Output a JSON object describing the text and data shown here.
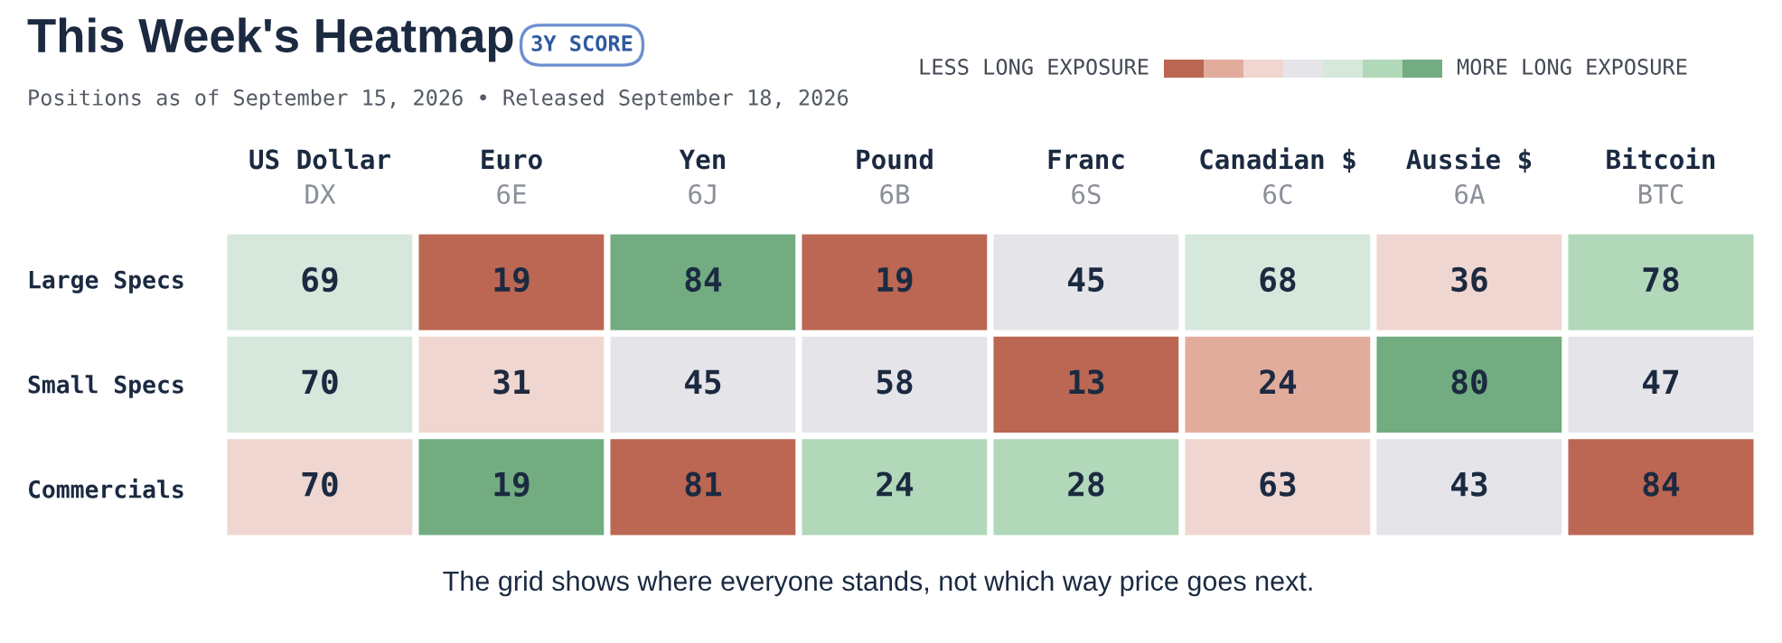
{
  "chart_data": {
    "type": "heatmap",
    "title": "This Week's Heatmap",
    "subtitle": "Positions as of September 15, 2026 • Released September 18, 2026",
    "categories": [
      "US Dollar\nDX",
      "Euro\n6E",
      "Yen\n6J",
      "Pound\n6B",
      "Franc\n6S",
      "Canadian $\n6C",
      "Aussie $\n6A",
      "Bitcoin\nBTC"
    ],
    "y_categories": [
      "Large Specs",
      "Small Specs",
      "Commercials"
    ],
    "cells": [
      [
        69,
        19,
        84,
        19,
        45,
        68,
        36,
        78
      ],
      [
        70,
        31,
        45,
        58,
        13,
        24,
        80,
        47
      ],
      [
        70,
        19,
        81,
        24,
        28,
        63,
        43,
        84
      ]
    ],
    "colors": [
      [
        "#d6e8dc",
        "#bb6753",
        "#72ac80",
        "#bb6753",
        "#e5e5e9",
        "#d6e8dc",
        "#efd6d0",
        "#b0d8b9"
      ],
      [
        "#d6e8dc",
        "#efd6d0",
        "#e5e5e9",
        "#e5e5e9",
        "#bb6753",
        "#e2ac9d",
        "#72ac80",
        "#e5e5e9"
      ],
      [
        "#efd6d0",
        "#72ac80",
        "#bb6753",
        "#b0d8b9",
        "#b0d8b9",
        "#efd6d0",
        "#e5e5e9",
        "#bb6753"
      ]
    ],
    "annotations": [
      "3Y SCORE",
      "LESS LONG EXPOSURE",
      "MORE LONG EXPOSURE",
      "The grid shows where everyone stands, not which way price goes next."
    ],
    "data_labels": true
  }
}
